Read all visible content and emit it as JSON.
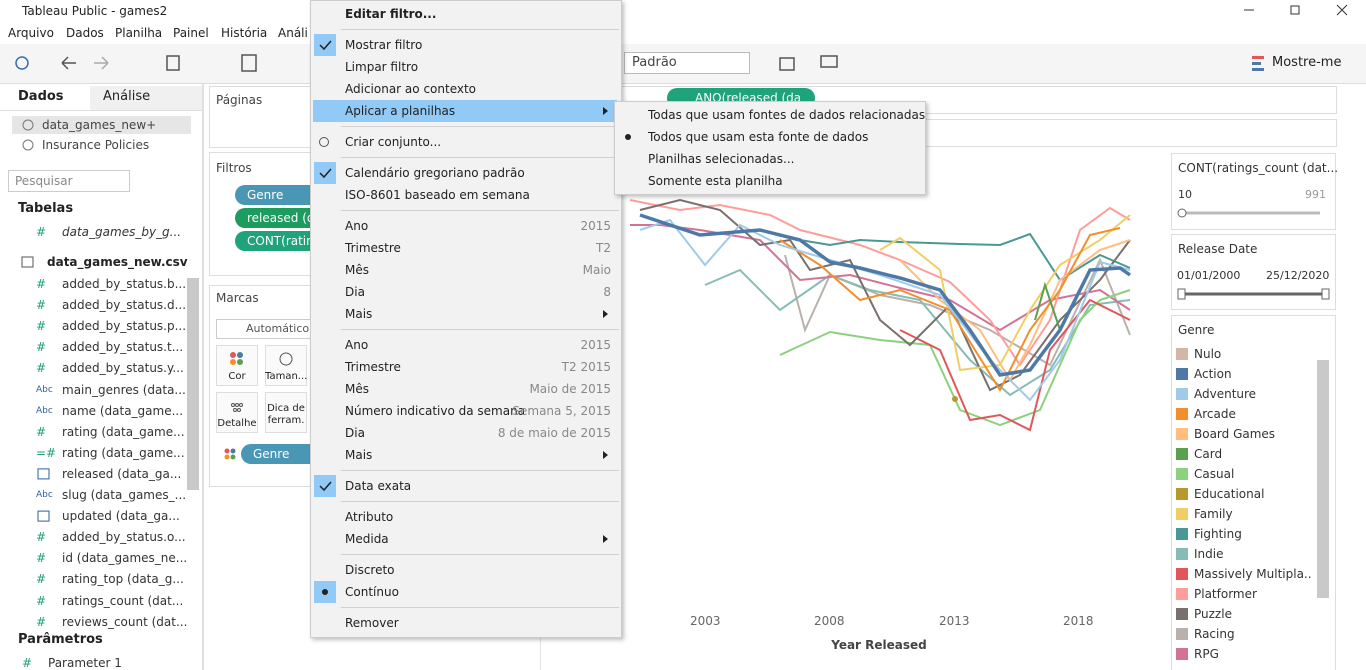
{
  "window": {
    "title": "Tableau Public - games2"
  },
  "menubar": [
    "Arquivo",
    "Dados",
    "Planilha",
    "Painel",
    "História",
    "Análi"
  ],
  "toolbar": {
    "format": "Padrão",
    "show_me": "Mostre-me"
  },
  "data_pane": {
    "tabs": [
      "Dados",
      "Análise"
    ],
    "sources": [
      "data_games_new+",
      "Insurance Policies"
    ],
    "search_placeholder": "Pesquisar",
    "tables_heading": "Tabelas",
    "tables": [
      {
        "icon": "#",
        "name": "data_games_by_g..."
      }
    ],
    "table": "data_games_new.csv",
    "fields": [
      {
        "icon": "#",
        "name": "added_by_status.b..."
      },
      {
        "icon": "#",
        "name": "added_by_status.d..."
      },
      {
        "icon": "#",
        "name": "added_by_status.p..."
      },
      {
        "icon": "#",
        "name": "added_by_status.t..."
      },
      {
        "icon": "#",
        "name": "added_by_status.y..."
      },
      {
        "icon": "Abc",
        "name": "main_genres (data..."
      },
      {
        "icon": "Abc",
        "name": "name (data_game..."
      },
      {
        "icon": "#",
        "name": "rating (data_game..."
      },
      {
        "icon": "=#",
        "name": "rating (data_game..."
      },
      {
        "name": "released (data_ga..."
      },
      {
        "icon": "Abc",
        "name": "slug (data_games_..."
      },
      {
        "name": "updated (data_ga..."
      },
      {
        "icon": "#",
        "name": "added_by_status.o..."
      },
      {
        "icon": "#",
        "name": "id (data_games_ne..."
      },
      {
        "icon": "#",
        "name": "rating_top (data_g..."
      },
      {
        "icon": "#",
        "name": "ratings_count (dat..."
      },
      {
        "icon": "#",
        "name": "reviews_count (dat..."
      }
    ],
    "parameters_heading": "Parâmetros",
    "parameters": [
      {
        "icon": "#",
        "name": "Parameter 1"
      }
    ]
  },
  "shelves": {
    "pages": "Páginas",
    "filters": "Filtros",
    "filter_pills": [
      "Genre",
      "released (da",
      "CONT(ratin"
    ],
    "marks": "Marcas",
    "mark_type": "Automático",
    "mark_buttons": [
      "Cor",
      "Taman...",
      "Detalhe",
      "Dica de ferram."
    ],
    "color_pill": "Genre",
    "columns_pill": "ANO(released (da"
  },
  "view": {
    "x_axis_labels": [
      "2003",
      "2008",
      "2013",
      "2018"
    ],
    "x_axis_title": "Year Released"
  },
  "context_menu": {
    "items": [
      {
        "label": "Editar filtro...",
        "bold": true
      },
      {
        "separator": true
      },
      {
        "label": "Mostrar filtro",
        "mark": "check"
      },
      {
        "label": "Limpar filtro"
      },
      {
        "label": "Adicionar ao contexto"
      },
      {
        "label": "Aplicar a planilhas",
        "submenu": true,
        "highlighted": true
      },
      {
        "separator": true
      },
      {
        "label": "Criar conjunto...",
        "mark": "set"
      },
      {
        "separator": true
      },
      {
        "label": "Calendário gregoriano padrão",
        "mark": "check"
      },
      {
        "label": "ISO-8601 baseado em semana"
      },
      {
        "separator": true
      },
      {
        "label": "Ano",
        "detail": "2015"
      },
      {
        "label": "Trimestre",
        "detail": "T2"
      },
      {
        "label": "Mês",
        "detail": "Maio"
      },
      {
        "label": "Dia",
        "detail": "8"
      },
      {
        "label": "Mais",
        "submenu": true
      },
      {
        "separator": true
      },
      {
        "label": "Ano",
        "detail": "2015"
      },
      {
        "label": "Trimestre",
        "detail": "T2 2015"
      },
      {
        "label": "Mês",
        "detail": "Maio de 2015"
      },
      {
        "label": "Número indicativo da semana",
        "detail": "Semana 5, 2015"
      },
      {
        "label": "Dia",
        "detail": "8 de maio de 2015"
      },
      {
        "label": "Mais",
        "submenu": true
      },
      {
        "separator": true
      },
      {
        "label": "Data exata",
        "mark": "check"
      },
      {
        "separator": true
      },
      {
        "label": "Atributo"
      },
      {
        "label": "Medida",
        "submenu": true
      },
      {
        "separator": true
      },
      {
        "label": "Discreto"
      },
      {
        "label": "Contínuo",
        "mark": "dot"
      },
      {
        "separator": true
      },
      {
        "label": "Remover"
      }
    ]
  },
  "submenu": {
    "items": [
      {
        "label": "Todas que usam fontes de dados relacionadas"
      },
      {
        "label": "Todos que usam esta fonte de dados",
        "mark": "dot"
      },
      {
        "label": "Planilhas selecionadas..."
      },
      {
        "label": "Somente esta planilha"
      }
    ]
  },
  "cards": {
    "ratings": {
      "title": "CONT(ratings_count (dat...",
      "min": 10,
      "max": 991
    },
    "release_date": {
      "title": "Release Date",
      "min": "01/01/2000",
      "max": "25/12/2020"
    },
    "genre": {
      "title": "Genre",
      "items": [
        {
          "name": "Nulo",
          "color": "#d4b5a6"
        },
        {
          "name": "Action",
          "color": "#4e79a7"
        },
        {
          "name": "Adventure",
          "color": "#a0cbe8"
        },
        {
          "name": "Arcade",
          "color": "#f28e2b"
        },
        {
          "name": "Board Games",
          "color": "#ffbe7d"
        },
        {
          "name": "Card",
          "color": "#59a14f"
        },
        {
          "name": "Casual",
          "color": "#8cd17d"
        },
        {
          "name": "Educational",
          "color": "#b6992d"
        },
        {
          "name": "Family",
          "color": "#f1ce63"
        },
        {
          "name": "Fighting",
          "color": "#499894"
        },
        {
          "name": "Indie",
          "color": "#86bcb6"
        },
        {
          "name": "Massively Multipla..",
          "color": "#e15759"
        },
        {
          "name": "Platformer",
          "color": "#ff9d9a"
        },
        {
          "name": "Puzzle",
          "color": "#79706e"
        },
        {
          "name": "Racing",
          "color": "#bab0ac"
        },
        {
          "name": "RPG",
          "color": "#d37295"
        }
      ]
    }
  }
}
